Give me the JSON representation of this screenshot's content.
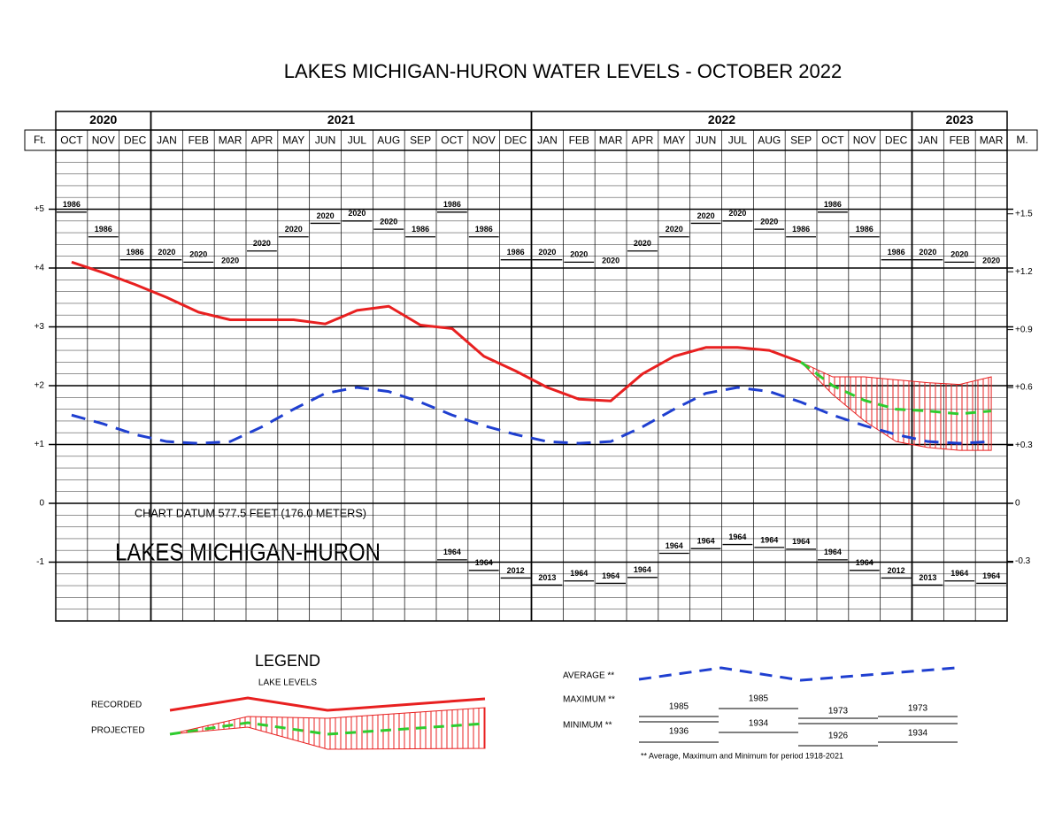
{
  "chart_data": {
    "type": "line",
    "title": "LAKES MICHIGAN-HURON WATER LEVELS - OCTOBER 2022",
    "years": [
      "2020",
      "2021",
      "2022",
      "2023"
    ],
    "categories": [
      "OCT",
      "NOV",
      "DEC",
      "JAN",
      "FEB",
      "MAR",
      "APR",
      "MAY",
      "JUN",
      "JUL",
      "AUG",
      "SEP",
      "OCT",
      "NOV",
      "DEC",
      "JAN",
      "FEB",
      "MAR",
      "APR",
      "MAY",
      "JUN",
      "JUL",
      "AUG",
      "SEP",
      "OCT",
      "NOV",
      "DEC",
      "JAN",
      "FEB",
      "MAR"
    ],
    "y_label": "Ft.",
    "y2_label": "M.",
    "ylim": [
      -2,
      6
    ],
    "yticks": [
      {
        "value": 5,
        "label": "+5"
      },
      {
        "value": 4,
        "label": "+4"
      },
      {
        "value": 3,
        "label": "+3"
      },
      {
        "value": 2,
        "label": "+2"
      },
      {
        "value": 1,
        "label": "+1"
      },
      0,
      -1
    ],
    "y2lim": [
      -0.6096,
      1.8288
    ],
    "y2ticks": [
      {
        "value": 1.5,
        "label": "+1.5"
      },
      {
        "value": 1.2,
        "label": "+1.2"
      },
      {
        "value": 0.9,
        "label": "+0.9"
      },
      {
        "value": 0.6,
        "label": "+0.6"
      },
      {
        "value": 0.3,
        "label": "+0.3"
      },
      0,
      -0.3
    ],
    "grid": true,
    "annotations": [
      "CHART DATUM  577.5 FEET (176.0 METERS)",
      "LAKES MICHIGAN-HURON"
    ],
    "series": [
      {
        "name": "RECORDED",
        "color": "#e82020",
        "style": "solid",
        "values": [
          4.1,
          3.92,
          3.72,
          3.5,
          3.25,
          3.12,
          3.12,
          3.12,
          3.05,
          3.28,
          3.35,
          3.03,
          2.97,
          2.5,
          2.25,
          1.97,
          1.77,
          1.74,
          2.2,
          2.5,
          2.65,
          2.65,
          2.6,
          2.4,
          null,
          null,
          null,
          null,
          null,
          null
        ]
      },
      {
        "name": "PROJECTED",
        "color": "#2ecc2e",
        "style": "dashed",
        "band_color": "#e82020",
        "values": [
          null,
          null,
          null,
          null,
          null,
          null,
          null,
          null,
          null,
          null,
          null,
          null,
          null,
          null,
          null,
          null,
          null,
          null,
          null,
          null,
          null,
          null,
          null,
          2.4,
          2.0,
          1.75,
          1.6,
          1.57,
          1.52,
          1.57
        ],
        "upper": [
          null,
          null,
          null,
          null,
          null,
          null,
          null,
          null,
          null,
          null,
          null,
          null,
          null,
          null,
          null,
          null,
          null,
          null,
          null,
          null,
          null,
          null,
          null,
          2.4,
          2.15,
          2.15,
          2.1,
          2.05,
          2.02,
          2.15
        ],
        "lower": [
          null,
          null,
          null,
          null,
          null,
          null,
          null,
          null,
          null,
          null,
          null,
          null,
          null,
          null,
          null,
          null,
          null,
          null,
          null,
          null,
          null,
          null,
          null,
          2.4,
          1.85,
          1.4,
          1.05,
          0.95,
          0.9,
          0.9
        ]
      },
      {
        "name": "AVERAGE **",
        "color": "#1f3fd0",
        "style": "dashed",
        "values": [
          1.5,
          1.35,
          1.17,
          1.05,
          1.02,
          1.05,
          1.3,
          1.6,
          1.87,
          1.97,
          1.9,
          1.72,
          1.5,
          1.32,
          1.17,
          1.05,
          1.02,
          1.05,
          1.3,
          1.6,
          1.87,
          1.97,
          1.9,
          1.72,
          1.5,
          1.32,
          1.17,
          1.05,
          1.02,
          1.05
        ]
      },
      {
        "name": "MAXIMUM **",
        "color": "#000000",
        "style": "step",
        "values": [
          4.95,
          4.53,
          4.14,
          4.14,
          4.1,
          4.0,
          4.29,
          4.53,
          4.76,
          4.8,
          4.66,
          4.53,
          4.95,
          4.53,
          4.14,
          4.14,
          4.1,
          4.0,
          4.29,
          4.53,
          4.76,
          4.8,
          4.66,
          4.53,
          4.95,
          4.53,
          4.14,
          4.14,
          4.1,
          4.0
        ],
        "years": [
          "1986",
          "1986",
          "1986",
          "2020",
          "2020",
          "2020",
          "2020",
          "2020",
          "2020",
          "2020",
          "2020",
          "1986",
          "1986",
          "1986",
          "1986",
          "2020",
          "2020",
          "2020",
          "2020",
          "2020",
          "2020",
          "2020",
          "2020",
          "1986",
          "1986",
          "1986",
          "1986",
          "2020",
          "2020",
          "2020"
        ]
      },
      {
        "name": "MINIMUM **",
        "color": "#000000",
        "style": "step",
        "values": [
          null,
          null,
          null,
          null,
          null,
          null,
          null,
          null,
          null,
          null,
          null,
          null,
          -0.96,
          -1.14,
          -1.27,
          -1.39,
          -1.32,
          -1.36,
          -1.26,
          -0.85,
          -0.77,
          -0.7,
          -0.75,
          -0.78,
          -0.96,
          -1.14,
          -1.27,
          -1.39,
          -1.32,
          -1.36
        ],
        "years": [
          null,
          null,
          null,
          null,
          null,
          null,
          null,
          null,
          null,
          null,
          null,
          null,
          "1964",
          "1964",
          "2012",
          "2013",
          "1964",
          "1964",
          "1964",
          "1964",
          "1964",
          "1964",
          "1964",
          "1964",
          "1964",
          "1964",
          "2012",
          "2013",
          "1964",
          "1964"
        ]
      }
    ],
    "legend": {
      "title": "LEGEND",
      "subtitle": "LAKE LEVELS",
      "maximum_examples": [
        "1985",
        "1985",
        "1973",
        "1973"
      ],
      "minimum_examples": [
        "1936",
        "1934",
        "1926",
        "1934"
      ],
      "footnote": "** Average, Maximum and Minimum for period 1918-2021"
    }
  }
}
